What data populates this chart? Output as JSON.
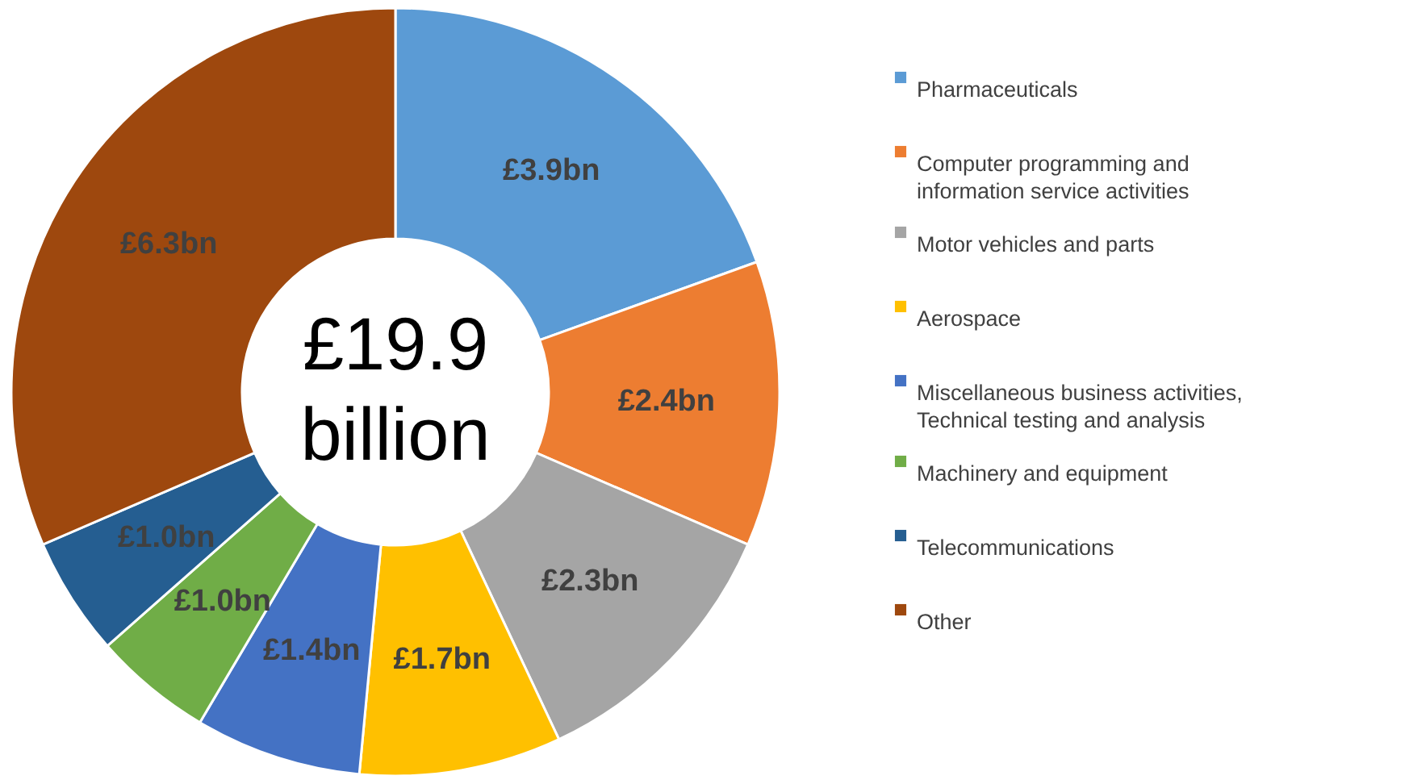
{
  "chart_data": {
    "type": "donut",
    "categories": [
      "Pharmaceuticals",
      "Computer programming and information service activities",
      "Motor vehicles and parts",
      "Aerospace",
      "Miscellaneous business activities, Technical testing and analysis",
      "Machinery and equipment",
      "Telecommunications",
      "Other"
    ],
    "values": [
      3.9,
      2.4,
      2.3,
      1.7,
      1.4,
      1.0,
      1.0,
      6.3
    ],
    "colors": [
      "#5b9bd5",
      "#ed7d31",
      "#a5a5a5",
      "#ffc000",
      "#4472c4",
      "#70ad47",
      "#255e91",
      "#9e480e"
    ],
    "value_labels": [
      "£3.9bn",
      "£2.4bn",
      "£2.3bn",
      "£1.7bn",
      "£1.4bn",
      "£1.0bn",
      "£1.0bn",
      "£6.3bn"
    ],
    "annotations": [
      "£19.9 billion"
    ],
    "legend": "right"
  }
}
